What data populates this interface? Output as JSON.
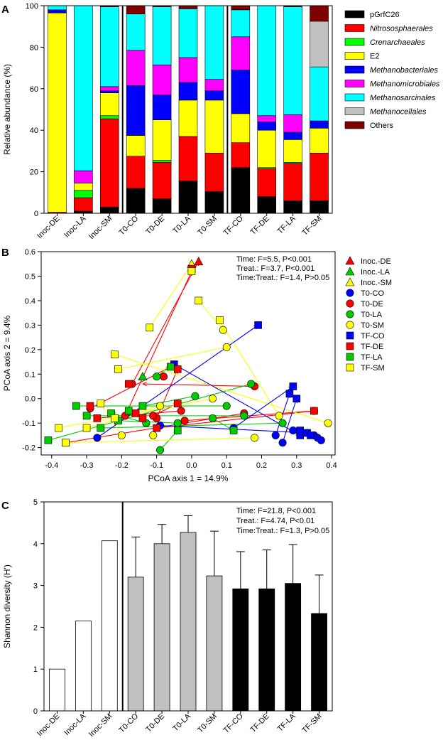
{
  "chart_data": [
    {
      "panel": "A",
      "type": "bar",
      "stacked": true,
      "ylabel": "Relative abundance (%)",
      "ylim": [
        0,
        100
      ],
      "yticks": [
        0,
        20,
        40,
        60,
        80,
        100
      ],
      "categories": [
        "Inoc-DE",
        "Inoc-LA",
        "Inoc-SM",
        "T0-CO",
        "T0-DE",
        "T0-LA",
        "T0-SM",
        "TF-CO",
        "TF-DE",
        "TF-LA",
        "TF-SM"
      ],
      "group_dividers_after": [
        2,
        6
      ],
      "legend_position": "right",
      "series": [
        {
          "name": "pGrfC26",
          "italic": false,
          "color": "#000000",
          "values": [
            0,
            1,
            3,
            12,
            7,
            15.5,
            10.5,
            22,
            8,
            6,
            6
          ]
        },
        {
          "name": "Nitrososphaerales",
          "italic": true,
          "color": "#ff0000",
          "values": [
            0.5,
            6.5,
            42.5,
            15.5,
            17.5,
            21.5,
            18.5,
            12,
            13.5,
            18,
            23
          ]
        },
        {
          "name": "Crenarchaeales",
          "italic": true,
          "color": "#00ff00",
          "values": [
            0,
            3.5,
            1.5,
            0,
            1,
            0,
            0,
            0,
            0.5,
            0.5,
            0
          ]
        },
        {
          "name": "E2",
          "italic": false,
          "color": "#ffff00",
          "values": [
            96,
            3.5,
            11,
            10,
            19.5,
            17.5,
            25.5,
            14,
            18,
            11,
            12
          ]
        },
        {
          "name": "Methanobacteriales",
          "italic": true,
          "color": "#0000ff",
          "values": [
            1.5,
            0,
            1,
            24,
            12,
            8.5,
            4.5,
            21,
            4,
            3.5,
            3.5
          ]
        },
        {
          "name": "Methanomicrobiales",
          "italic": true,
          "color": "#ff00ff",
          "values": [
            0,
            6,
            2,
            17,
            14.5,
            12,
            5.5,
            16,
            3,
            8.5,
            0
          ]
        },
        {
          "name": "Methanosarcinales",
          "italic": true,
          "color": "#00ffff",
          "values": [
            2,
            79.5,
            38.5,
            17.5,
            28,
            23.5,
            35.5,
            13,
            53,
            52,
            26
          ]
        },
        {
          "name": "Methanocellales",
          "italic": true,
          "color": "#c0c0c0",
          "values": [
            0,
            0,
            0,
            0,
            0,
            0,
            0,
            0,
            0,
            0,
            22
          ]
        },
        {
          "name": "Others",
          "italic": false,
          "color": "#800000",
          "values": [
            0,
            0,
            0.5,
            4,
            0.5,
            1.5,
            0,
            2,
            0,
            0.5,
            7.5
          ]
        }
      ]
    },
    {
      "panel": "B",
      "type": "scatter",
      "xlabel": "PCoA axis 1 = 14.9%",
      "ylabel": "PCoA axis 2 = 9.4%",
      "xlim": [
        -0.43,
        0.41
      ],
      "ylim": [
        -0.23,
        0.6
      ],
      "xticks": [
        -0.4,
        -0.3,
        -0.2,
        -0.1,
        0.0,
        0.1,
        0.2,
        0.3,
        0.4
      ],
      "xtick_labels": [
        "-0.4",
        "-0.3",
        "-0.2",
        "-0.1",
        "0.0",
        "0.1",
        "0.2",
        "0.3",
        "0.4"
      ],
      "yticks": [
        -0.2,
        -0.1,
        0.0,
        0.1,
        0.2,
        0.3,
        0.4,
        0.5,
        0.6
      ],
      "ytick_labels": [
        "-0.2",
        "-0.1",
        "0.0",
        "0.1",
        "0.2",
        "0.3",
        "0.4",
        "0.5",
        "0.6"
      ],
      "stats": [
        "Time: F=5.5, P<0.001",
        "Treat.: F=3.7, P<0.001",
        "Time:Treat.: F=1.4, P>0.05"
      ],
      "legend_position": "right",
      "legend": [
        {
          "name": "Inoc.-DE",
          "shape": "triangle",
          "color": "#ff0000"
        },
        {
          "name": "Inoc.-LA",
          "shape": "triangle",
          "color": "#00cc00"
        },
        {
          "name": "Inoc.-SM",
          "shape": "triangle",
          "color": "#ffff00"
        },
        {
          "name": "T0-CO",
          "shape": "circle",
          "color": "#0000ff"
        },
        {
          "name": "T0-DE",
          "shape": "circle",
          "color": "#ff0000"
        },
        {
          "name": "T0-LA",
          "shape": "circle",
          "color": "#00cc00"
        },
        {
          "name": "T0-SM",
          "shape": "circle",
          "color": "#ffff00"
        },
        {
          "name": "TF-CO",
          "shape": "square",
          "color": "#0000ff"
        },
        {
          "name": "TF-DE",
          "shape": "square",
          "color": "#ff0000"
        },
        {
          "name": "TF-LA",
          "shape": "square",
          "color": "#00cc00"
        },
        {
          "name": "TF-SM",
          "shape": "square",
          "color": "#ffff00"
        }
      ],
      "points": {
        "Inoc.-DE": [
          [
            0.02,
            0.56
          ]
        ],
        "Inoc.-LA": [
          [
            -0.14,
            0.09
          ]
        ],
        "Inoc.-SM": [
          [
            0.0,
            0.55
          ]
        ],
        "T0-CO": [
          [
            0.24,
            -0.15
          ],
          [
            0.26,
            -0.18
          ],
          [
            0.29,
            -0.13
          ],
          [
            0.12,
            -0.12
          ],
          [
            0.35,
            -0.15
          ],
          [
            -0.27,
            -0.16
          ],
          [
            0.36,
            -0.16
          ],
          [
            0.37,
            -0.17
          ],
          [
            0.33,
            -0.14
          ],
          [
            -0.09,
            -0.11
          ]
        ],
        "T0-DE": [
          [
            0.0,
            0.52
          ],
          [
            -0.17,
            0.06
          ],
          [
            -0.1,
            -0.08
          ],
          [
            -0.19,
            -0.07
          ],
          [
            0.18,
            0.05
          ],
          [
            -0.08,
            0.09
          ],
          [
            -0.03,
            -0.05
          ],
          [
            -0.29,
            -0.04
          ],
          [
            -0.11,
            -0.07
          ],
          [
            0.15,
            -0.06
          ],
          [
            -0.02,
            -0.09
          ],
          [
            0.35,
            -0.05
          ]
        ],
        "T0-LA": [
          [
            -0.09,
            -0.21
          ],
          [
            0.17,
            0.06
          ],
          [
            0.1,
            -0.03
          ],
          [
            0.15,
            -0.07
          ],
          [
            -0.1,
            0.09
          ],
          [
            0.01,
            0.01
          ],
          [
            -0.04,
            -0.1
          ],
          [
            -0.13,
            -0.1
          ],
          [
            0.06,
            -0.08
          ],
          [
            0.26,
            -0.1
          ]
        ],
        "T0-SM": [
          [
            0.09,
            0.28
          ],
          [
            0.1,
            0.21
          ],
          [
            -0.11,
            -0.15
          ],
          [
            0.06,
            0.0
          ],
          [
            -0.2,
            -0.15
          ],
          [
            0.25,
            -0.07
          ],
          [
            -0.09,
            -0.03
          ],
          [
            0.18,
            -0.16
          ],
          [
            0.39,
            -0.1
          ]
        ],
        "TF-CO": [
          [
            0.29,
            0.05
          ],
          [
            0.19,
            0.3
          ],
          [
            -0.05,
            0.14
          ],
          [
            0.3,
            0.0
          ],
          [
            0.28,
            0.02
          ],
          [
            0.31,
            -0.15
          ],
          [
            0.33,
            -0.14
          ],
          [
            0.34,
            -0.15
          ],
          [
            0.31,
            -0.13
          ]
        ],
        "TF-DE": [
          [
            0.0,
            0.53
          ],
          [
            -0.36,
            -0.18
          ],
          [
            -0.04,
            0.12
          ],
          [
            -0.14,
            -0.08
          ],
          [
            -0.29,
            -0.03
          ],
          [
            -0.27,
            -0.08
          ],
          [
            -0.16,
            -0.06
          ],
          [
            -0.18,
            0.06
          ],
          [
            -0.04,
            -0.02
          ],
          [
            0.35,
            -0.05
          ],
          [
            -0.1,
            -0.12
          ]
        ],
        "TF-LA": [
          [
            -0.41,
            -0.17
          ],
          [
            -0.18,
            -0.05
          ],
          [
            -0.33,
            -0.03
          ],
          [
            -0.3,
            -0.07
          ],
          [
            -0.06,
            0.13
          ],
          [
            -0.21,
            -0.09
          ],
          [
            0.12,
            -0.13
          ],
          [
            -0.04,
            -0.13
          ],
          [
            -0.23,
            -0.06
          ],
          [
            -0.26,
            -0.12
          ],
          [
            -0.14,
            -0.03
          ]
        ],
        "TF-SM": [
          [
            -0.38,
            -0.12
          ],
          [
            -0.36,
            -0.18
          ],
          [
            -0.21,
            0.12
          ],
          [
            -0.22,
            0.18
          ],
          [
            -0.3,
            -0.12
          ],
          [
            0.08,
            0.32
          ],
          [
            -0.26,
            -0.02
          ],
          [
            -0.12,
            0.29
          ],
          [
            0.02,
            0.4
          ],
          [
            -0.22,
            -0.08
          ],
          [
            0.0,
            0.52
          ]
        ]
      },
      "arrows": [
        {
          "color": "#ff0000",
          "from": [
            -0.19,
            -0.07
          ],
          "to": [
            0.0,
            0.52
          ]
        },
        {
          "color": "#ff0000",
          "from": [
            -0.17,
            0.06
          ],
          "to": [
            0.02,
            0.56
          ]
        },
        {
          "color": "#ff0000",
          "from": [
            0.15,
            -0.06
          ],
          "to": [
            -0.36,
            -0.18
          ]
        },
        {
          "color": "#ff0000",
          "from": [
            -0.1,
            -0.08
          ],
          "to": [
            -0.04,
            0.12
          ]
        },
        {
          "color": "#ff0000",
          "from": [
            0.18,
            0.05
          ],
          "to": [
            -0.14,
            0.06
          ]
        },
        {
          "color": "#ff0000",
          "from": [
            -0.02,
            -0.09
          ],
          "to": [
            0.35,
            -0.05
          ]
        },
        {
          "color": "#ff0000",
          "from": [
            -0.29,
            -0.04
          ],
          "to": [
            -0.06,
            0.13
          ]
        },
        {
          "color": "#ff0000",
          "from": [
            -0.11,
            -0.07
          ],
          "to": [
            -0.04,
            -0.02
          ]
        },
        {
          "color": "#ff0000",
          "from": [
            -0.03,
            -0.05
          ],
          "to": [
            -0.27,
            -0.08
          ]
        },
        {
          "color": "#ff0000",
          "from": [
            0.35,
            -0.05
          ],
          "to": [
            -0.1,
            -0.12
          ]
        },
        {
          "color": "#00cc00",
          "from": [
            0.17,
            0.06
          ],
          "to": [
            -0.41,
            -0.17
          ]
        },
        {
          "color": "#00cc00",
          "from": [
            0.1,
            -0.03
          ],
          "to": [
            -0.33,
            -0.03
          ]
        },
        {
          "color": "#00cc00",
          "from": [
            0.15,
            -0.07
          ],
          "to": [
            -0.3,
            -0.07
          ]
        },
        {
          "color": "#00cc00",
          "from": [
            -0.1,
            0.09
          ],
          "to": [
            -0.06,
            0.13
          ]
        },
        {
          "color": "#00cc00",
          "from": [
            -0.04,
            -0.1
          ],
          "to": [
            -0.21,
            -0.09
          ]
        },
        {
          "color": "#00cc00",
          "from": [
            0.06,
            -0.08
          ],
          "to": [
            0.12,
            -0.13
          ]
        },
        {
          "color": "#00cc00",
          "from": [
            0.26,
            -0.1
          ],
          "to": [
            -0.26,
            -0.12
          ]
        },
        {
          "color": "#00cc00",
          "from": [
            -0.09,
            -0.21
          ],
          "to": [
            -0.04,
            -0.13
          ]
        },
        {
          "color": "#00cc00",
          "from": [
            -0.13,
            -0.1
          ],
          "to": [
            -0.23,
            -0.06
          ]
        },
        {
          "color": "#00cc00",
          "from": [
            0.01,
            0.01
          ],
          "to": [
            -0.14,
            -0.03
          ]
        },
        {
          "color": "#ffff00",
          "from": [
            0.0,
            0.55
          ],
          "to": [
            -0.12,
            0.29
          ]
        },
        {
          "color": "#ffff00",
          "from": [
            0.09,
            0.28
          ],
          "to": [
            0.02,
            0.4
          ]
        },
        {
          "color": "#ffff00",
          "from": [
            0.1,
            0.21
          ],
          "to": [
            -0.21,
            0.12
          ]
        },
        {
          "color": "#ffff00",
          "from": [
            0.25,
            -0.07
          ],
          "to": [
            0.08,
            0.32
          ]
        },
        {
          "color": "#ffff00",
          "from": [
            0.06,
            0.0
          ],
          "to": [
            -0.38,
            -0.12
          ]
        },
        {
          "color": "#ffff00",
          "from": [
            0.18,
            -0.16
          ],
          "to": [
            -0.36,
            -0.18
          ]
        },
        {
          "color": "#ffff00",
          "from": [
            0.39,
            -0.1
          ],
          "to": [
            -0.22,
            0.18
          ]
        },
        {
          "color": "#ffff00",
          "from": [
            -0.09,
            -0.03
          ],
          "to": [
            -0.3,
            -0.12
          ]
        },
        {
          "color": "#ffff00",
          "from": [
            -0.2,
            -0.15
          ],
          "to": [
            -0.26,
            -0.02
          ]
        },
        {
          "color": "#0000ff",
          "from": [
            -0.27,
            -0.16
          ],
          "to": [
            0.19,
            0.3
          ]
        },
        {
          "color": "#0000ff",
          "from": [
            -0.05,
            0.14
          ],
          "to": [
            0.31,
            -0.15
          ]
        },
        {
          "color": "#0000ff",
          "from": [
            0.12,
            -0.12
          ],
          "to": [
            0.29,
            0.05
          ]
        },
        {
          "color": "#0000ff",
          "from": [
            0.26,
            -0.18
          ],
          "to": [
            0.3,
            0.0
          ]
        },
        {
          "color": "#0000ff",
          "from": [
            0.24,
            -0.15
          ],
          "to": [
            0.28,
            0.02
          ]
        },
        {
          "color": "#0000ff",
          "from": [
            -0.09,
            -0.11
          ],
          "to": [
            0.33,
            -0.14
          ]
        }
      ]
    },
    {
      "panel": "C",
      "type": "bar",
      "ylabel": "Shannon diversity (H')",
      "ylim": [
        0,
        5
      ],
      "yticks": [
        0,
        1,
        2,
        3,
        4,
        5
      ],
      "categories": [
        "Inoc-DE",
        "Inoc-LA",
        "Inoc-SM",
        "T0-CO",
        "T0-DE",
        "T0-LA",
        "T0-SM",
        "TF-CO",
        "TF-DE",
        "TF-LA",
        "TF-SM"
      ],
      "values": [
        1.0,
        2.15,
        4.07,
        3.2,
        4.0,
        4.27,
        3.23,
        2.92,
        2.92,
        3.05,
        2.33
      ],
      "errors": [
        null,
        null,
        null,
        0.96,
        0.46,
        0.4,
        1.07,
        0.89,
        0.93,
        0.93,
        0.92
      ],
      "colors": [
        "#ffffff",
        "#ffffff",
        "#ffffff",
        "#c0c0c0",
        "#c0c0c0",
        "#c0c0c0",
        "#c0c0c0",
        "#000000",
        "#000000",
        "#000000",
        "#000000"
      ],
      "divider_after": 2,
      "stats": [
        "Time: F=21.8, P<0.001",
        "Treat.: F=4.74, P<0.01",
        "Time:Treat.: F=1.3, P>0.05"
      ]
    }
  ]
}
